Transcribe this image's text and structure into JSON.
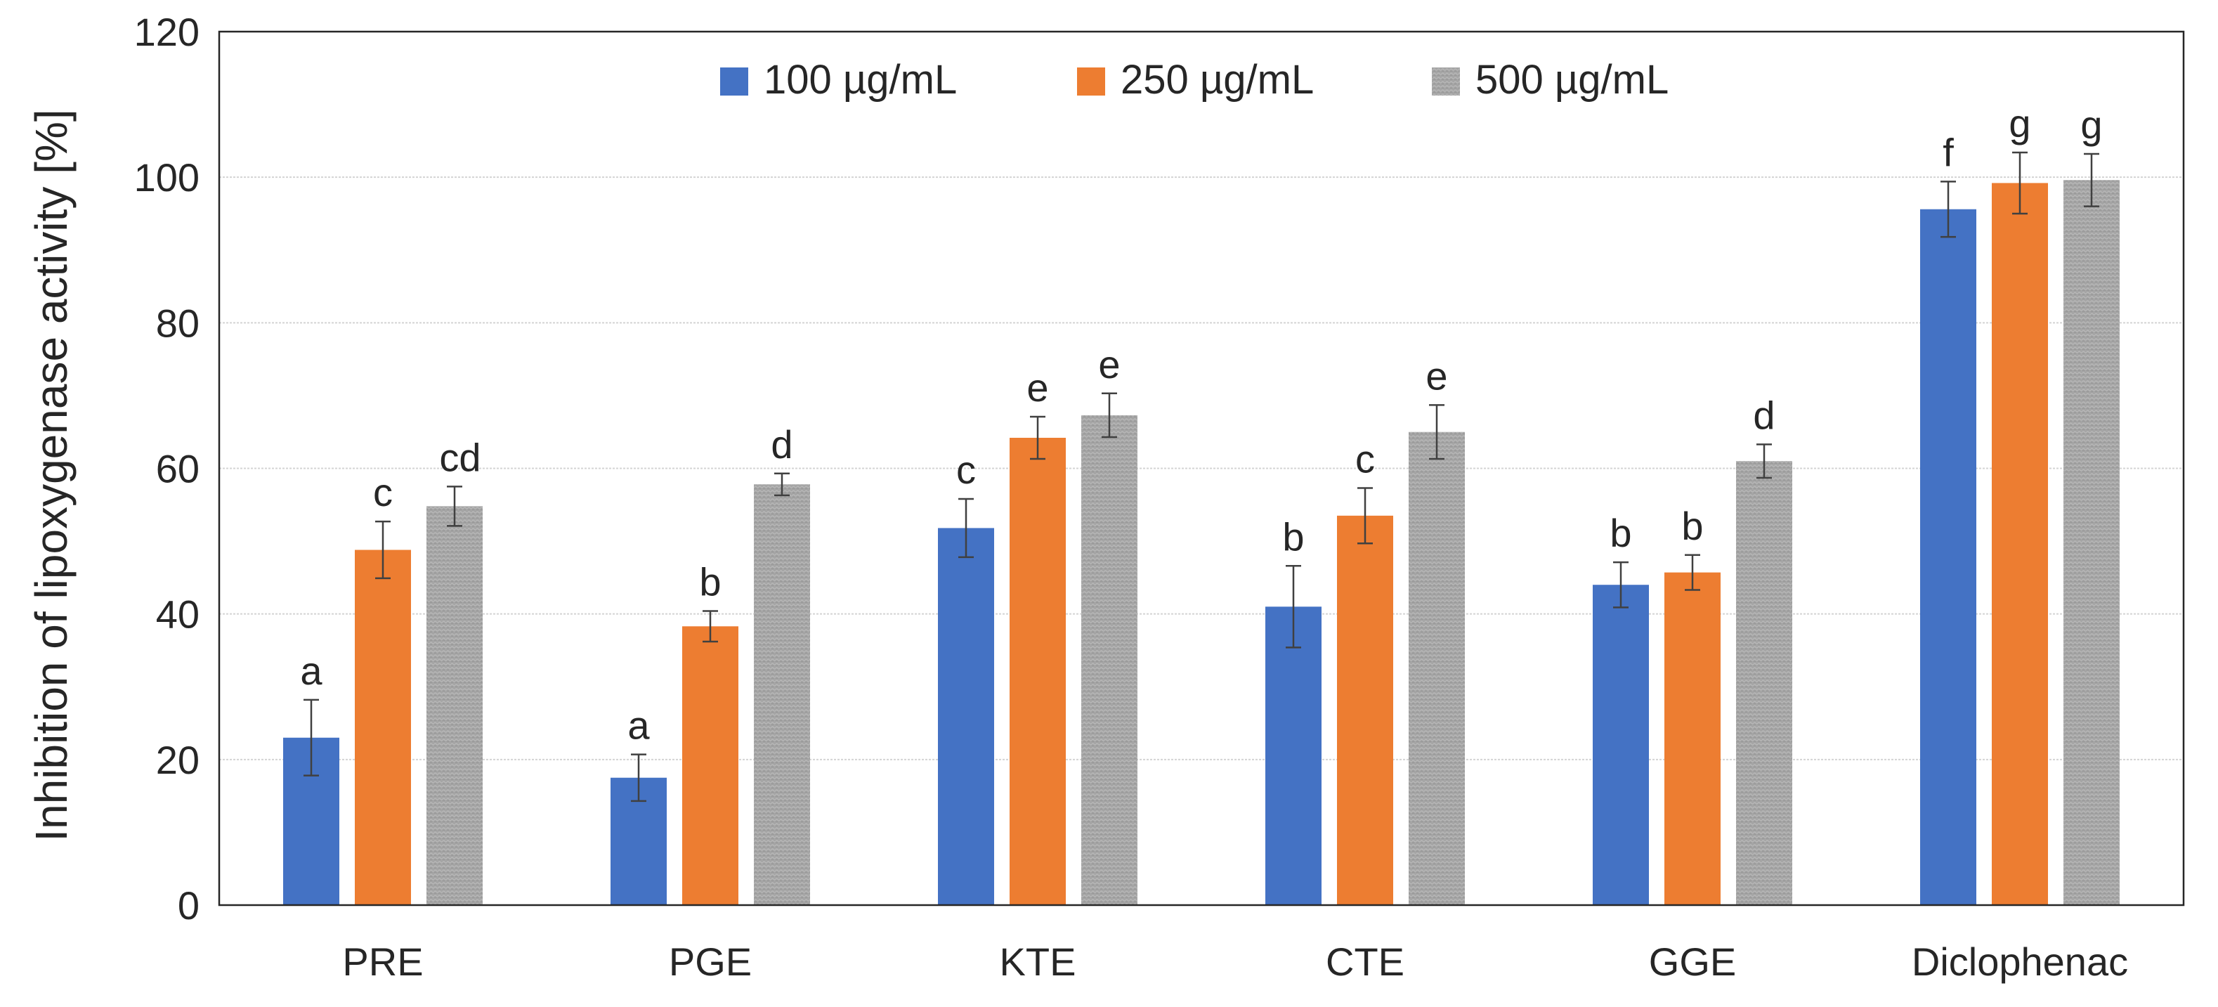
{
  "chart_data": {
    "type": "bar",
    "title": "",
    "xlabel": "",
    "ylabel": "Inhibition of lipoxygenase activity [%]",
    "ylim": [
      0,
      120
    ],
    "yticks": [
      0,
      20,
      40,
      60,
      80,
      100,
      120
    ],
    "grid": true,
    "legend_position": "top-center",
    "categories": [
      "PRE",
      "PGE",
      "KTE",
      "CTE",
      "GGE",
      "Diclophenac"
    ],
    "series": [
      {
        "name": "100 µg/mL",
        "color": "#4472C4",
        "values": [
          23,
          17.5,
          51.8,
          41,
          44,
          95.6
        ],
        "errors": [
          5.2,
          3.2,
          4,
          5.6,
          3.1,
          3.8
        ],
        "labels": [
          "a",
          "a",
          "c",
          "b",
          "b",
          "f"
        ]
      },
      {
        "name": "250 µg/mL",
        "color": "#ED7D31",
        "values": [
          48.8,
          38.3,
          64.2,
          53.5,
          45.7,
          99.2
        ],
        "errors": [
          3.9,
          2.1,
          2.9,
          3.8,
          2.4,
          4.2
        ],
        "labels": [
          "c",
          "b",
          "e",
          "c",
          "b",
          "g"
        ]
      },
      {
        "name": "500 µg/mL",
        "color": "#A5A5A5",
        "values": [
          54.8,
          57.8,
          67.3,
          65,
          61,
          99.6
        ],
        "errors": [
          2.7,
          1.5,
          3,
          3.7,
          2.3,
          3.6
        ],
        "labels": [
          "cd",
          "d",
          "e",
          "e",
          "d",
          "g"
        ]
      }
    ]
  }
}
